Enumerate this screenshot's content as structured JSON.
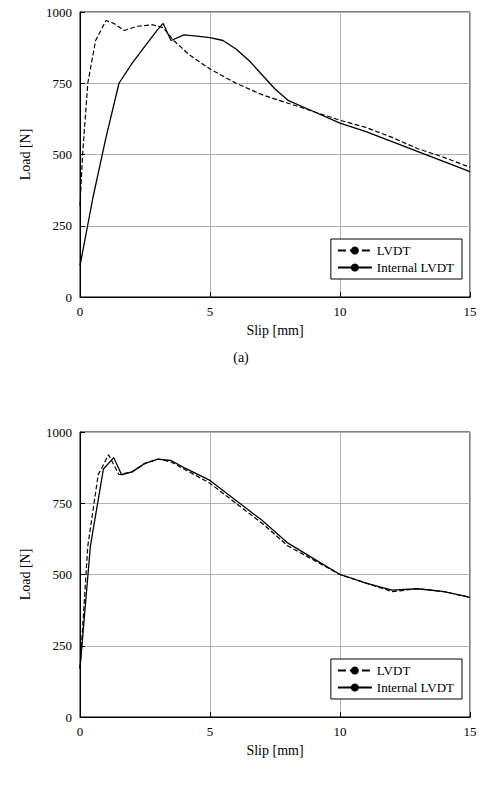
{
  "chart_data": [
    {
      "type": "line",
      "caption": "(a)",
      "xlabel": "Slip [mm]",
      "ylabel": "Load [N]",
      "xlim": [
        0,
        15
      ],
      "ylim": [
        0,
        1000
      ],
      "xticks": [
        0,
        5,
        10,
        15
      ],
      "yticks": [
        0,
        250,
        500,
        750,
        1000
      ],
      "grid": true,
      "legend": "lower right",
      "series": [
        {
          "name": "LVDT",
          "color": "#000000",
          "line_style": "dashed",
          "x": [
            0,
            0.1,
            0.3,
            0.6,
            1.0,
            1.3,
            1.7,
            2.2,
            2.8,
            3.2,
            3.6,
            4.2,
            5,
            6,
            7,
            8,
            9,
            10,
            11,
            12,
            13,
            14,
            15
          ],
          "values": [
            320,
            500,
            750,
            900,
            970,
            960,
            935,
            950,
            955,
            945,
            900,
            850,
            800,
            750,
            710,
            680,
            650,
            620,
            595,
            560,
            520,
            490,
            455
          ]
        },
        {
          "name": "Internal LVDT",
          "color": "#000000",
          "line_style": "solid",
          "x": [
            0,
            0.5,
            1,
            1.5,
            2,
            2.5,
            3,
            3.2,
            3.5,
            4,
            4.5,
            5,
            5.5,
            6,
            6.5,
            7,
            7.5,
            8,
            9,
            10,
            11,
            12,
            13,
            14,
            15
          ],
          "values": [
            110,
            350,
            560,
            750,
            820,
            880,
            940,
            960,
            900,
            920,
            915,
            910,
            900,
            870,
            830,
            780,
            730,
            690,
            650,
            610,
            580,
            545,
            510,
            475,
            440
          ]
        }
      ]
    },
    {
      "type": "line",
      "xlabel": "Slip [mm]",
      "ylabel": "Load [N]",
      "xlim": [
        0,
        15
      ],
      "ylim": [
        0,
        1000
      ],
      "xticks": [
        0,
        5,
        10,
        15
      ],
      "yticks": [
        0,
        250,
        500,
        750,
        1000
      ],
      "grid": true,
      "legend": "lower right",
      "series": [
        {
          "name": "LVDT",
          "color": "#000000",
          "line_style": "dashed",
          "x": [
            0,
            0.3,
            0.7,
            1.1,
            1.5,
            2,
            2.5,
            3,
            3.5,
            4,
            5,
            6,
            7,
            8,
            9,
            10,
            11,
            12,
            13,
            14,
            15
          ],
          "values": [
            170,
            600,
            850,
            920,
            850,
            860,
            890,
            905,
            895,
            870,
            820,
            750,
            680,
            600,
            550,
            500,
            470,
            440,
            450,
            440,
            420
          ]
        },
        {
          "name": "Internal LVDT",
          "color": "#000000",
          "line_style": "solid",
          "x": [
            0,
            0.4,
            0.9,
            1.3,
            1.6,
            2,
            2.5,
            3,
            3.5,
            4,
            5,
            6,
            7,
            8,
            9,
            10,
            11,
            12,
            13,
            14,
            15
          ],
          "values": [
            170,
            600,
            870,
            910,
            850,
            860,
            890,
            905,
            900,
            875,
            830,
            760,
            690,
            610,
            555,
            500,
            470,
            445,
            450,
            440,
            420
          ]
        }
      ]
    }
  ]
}
